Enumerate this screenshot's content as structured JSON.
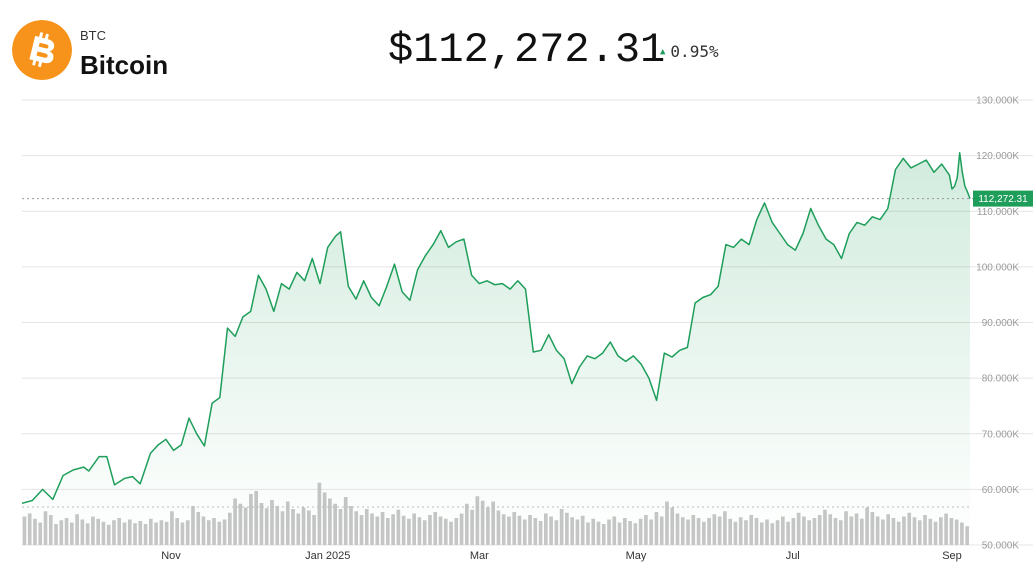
{
  "asset": {
    "ticker": "BTC",
    "name": "Bitcoin",
    "icon": "bitcoin-logo-icon",
    "price": "$112,272.31",
    "change": "0.95%",
    "change_direction": "up",
    "colors": {
      "logo": "#f7931a",
      "line": "#1e9e5a",
      "up": "#1e9e5a",
      "volume": "#c6c6c6"
    }
  },
  "chart_data": {
    "type": "area",
    "title": "",
    "xlabel": "",
    "ylabel": "",
    "ylim": [
      50000,
      130000
    ],
    "y_ticks": [
      {
        "value": 130000,
        "label": "130.000K"
      },
      {
        "value": 120000,
        "label": "120.000K"
      },
      {
        "value": 110000,
        "label": "110.000K"
      },
      {
        "value": 100000,
        "label": "100.000K"
      },
      {
        "value": 90000,
        "label": "90.000K"
      },
      {
        "value": 80000,
        "label": "80.000K"
      },
      {
        "value": 70000,
        "label": "70.000K"
      },
      {
        "value": 60000,
        "label": "60.000K"
      },
      {
        "value": 50000,
        "label": "50.000K"
      }
    ],
    "x_range": [
      "2024-09-04",
      "2025-09-08"
    ],
    "x_ticks": [
      {
        "date": "2024-11-01",
        "label": "Nov"
      },
      {
        "date": "2025-01-01",
        "label": "Jan 2025"
      },
      {
        "date": "2025-03-01",
        "label": "Mar"
      },
      {
        "date": "2025-05-01",
        "label": "May"
      },
      {
        "date": "2025-07-01",
        "label": "Jul"
      },
      {
        "date": "2025-09-01",
        "label": "Sep"
      }
    ],
    "last_price": 112272.31,
    "last_price_label": "112,272.31",
    "grid": true,
    "series": [
      {
        "values": [
          [
            "2024-09-04",
            57500
          ],
          [
            "2024-09-08",
            58000
          ],
          [
            "2024-09-12",
            60000
          ],
          [
            "2024-09-16",
            58200
          ],
          [
            "2024-09-20",
            62500
          ],
          [
            "2024-09-24",
            63500
          ],
          [
            "2024-09-28",
            64000
          ],
          [
            "2024-09-30",
            63300
          ],
          [
            "2024-10-04",
            65900
          ],
          [
            "2024-10-07",
            65900
          ],
          [
            "2024-10-10",
            60800
          ],
          [
            "2024-10-14",
            62000
          ],
          [
            "2024-10-17",
            62300
          ],
          [
            "2024-10-20",
            61000
          ],
          [
            "2024-10-24",
            66500
          ],
          [
            "2024-10-27",
            68000
          ],
          [
            "2024-10-30",
            69000
          ],
          [
            "2024-11-02",
            67000
          ],
          [
            "2024-11-05",
            68000
          ],
          [
            "2024-11-08",
            72800
          ],
          [
            "2024-11-11",
            70000
          ],
          [
            "2024-11-14",
            67800
          ],
          [
            "2024-11-17",
            75500
          ],
          [
            "2024-11-20",
            76500
          ],
          [
            "2024-11-23",
            89000
          ],
          [
            "2024-11-26",
            87500
          ],
          [
            "2024-11-29",
            91000
          ],
          [
            "2024-12-02",
            92000
          ],
          [
            "2024-12-05",
            98500
          ],
          [
            "2024-12-08",
            96000
          ],
          [
            "2024-12-11",
            92000
          ],
          [
            "2024-12-14",
            97000
          ],
          [
            "2024-12-17",
            96000
          ],
          [
            "2024-12-20",
            99000
          ],
          [
            "2024-12-23",
            97500
          ],
          [
            "2024-12-26",
            101500
          ],
          [
            "2024-12-29",
            97000
          ],
          [
            "2025-01-01",
            103500
          ],
          [
            "2025-01-04",
            105500
          ],
          [
            "2025-01-06",
            106300
          ],
          [
            "2025-01-09",
            96500
          ],
          [
            "2025-01-12",
            94200
          ],
          [
            "2025-01-15",
            97500
          ],
          [
            "2025-01-18",
            94500
          ],
          [
            "2025-01-21",
            93000
          ],
          [
            "2025-01-24",
            96500
          ],
          [
            "2025-01-27",
            100500
          ],
          [
            "2025-01-30",
            95500
          ],
          [
            "2025-02-02",
            94000
          ],
          [
            "2025-02-05",
            99500
          ],
          [
            "2025-02-08",
            102000
          ],
          [
            "2025-02-11",
            104000
          ],
          [
            "2025-02-14",
            106500
          ],
          [
            "2025-02-17",
            103500
          ],
          [
            "2025-02-20",
            104500
          ],
          [
            "2025-02-23",
            105000
          ],
          [
            "2025-02-26",
            98500
          ],
          [
            "2025-03-01",
            97000
          ],
          [
            "2025-03-04",
            97500
          ],
          [
            "2025-03-07",
            96800
          ],
          [
            "2025-03-10",
            97000
          ],
          [
            "2025-03-13",
            96000
          ],
          [
            "2025-03-16",
            97500
          ],
          [
            "2025-03-19",
            96000
          ],
          [
            "2025-03-22",
            84700
          ],
          [
            "2025-03-25",
            85000
          ],
          [
            "2025-03-28",
            87800
          ],
          [
            "2025-03-31",
            85000
          ],
          [
            "2025-04-03",
            83500
          ],
          [
            "2025-04-06",
            79000
          ],
          [
            "2025-04-09",
            82000
          ],
          [
            "2025-04-12",
            84000
          ],
          [
            "2025-04-15",
            83500
          ],
          [
            "2025-04-18",
            84500
          ],
          [
            "2025-04-21",
            86500
          ],
          [
            "2025-04-24",
            84000
          ],
          [
            "2025-04-27",
            83000
          ],
          [
            "2025-04-30",
            84000
          ],
          [
            "2025-05-03",
            82500
          ],
          [
            "2025-05-06",
            80000
          ],
          [
            "2025-05-09",
            76000
          ],
          [
            "2025-05-12",
            84500
          ],
          [
            "2025-05-15",
            83800
          ],
          [
            "2025-05-18",
            85000
          ],
          [
            "2025-05-21",
            85500
          ],
          [
            "2025-05-24",
            93500
          ],
          [
            "2025-05-27",
            94500
          ],
          [
            "2025-05-30",
            95000
          ],
          [
            "2025-06-02",
            96500
          ],
          [
            "2025-06-05",
            104000
          ],
          [
            "2025-06-08",
            103500
          ],
          [
            "2025-06-11",
            105000
          ],
          [
            "2025-06-14",
            104000
          ],
          [
            "2025-06-17",
            108500
          ],
          [
            "2025-06-20",
            111500
          ],
          [
            "2025-06-23",
            108000
          ],
          [
            "2025-06-26",
            106000
          ],
          [
            "2025-06-29",
            104000
          ],
          [
            "2025-07-02",
            103000
          ],
          [
            "2025-07-05",
            106000
          ],
          [
            "2025-07-08",
            110500
          ],
          [
            "2025-07-11",
            107500
          ],
          [
            "2025-07-14",
            105000
          ],
          [
            "2025-07-17",
            104000
          ],
          [
            "2025-07-20",
            101500
          ],
          [
            "2025-07-23",
            106000
          ],
          [
            "2025-07-26",
            108000
          ],
          [
            "2025-07-29",
            107500
          ],
          [
            "2025-08-01",
            109000
          ],
          [
            "2025-08-04",
            108500
          ],
          [
            "2025-08-07",
            110500
          ],
          [
            "2025-08-10",
            117500
          ],
          [
            "2025-08-13",
            119500
          ],
          [
            "2025-08-16",
            117800
          ],
          [
            "2025-08-19",
            118500
          ],
          [
            "2025-08-22",
            119200
          ],
          [
            "2025-08-25",
            117000
          ],
          [
            "2025-08-28",
            118500
          ],
          [
            "2025-08-31",
            116500
          ],
          [
            "2025-09-01",
            114000
          ],
          [
            "2025-09-02",
            114500
          ],
          [
            "2025-09-03",
            116000
          ],
          [
            "2025-09-04",
            120500
          ],
          [
            "2025-09-05",
            117000
          ],
          [
            "2025-09-06",
            114500
          ],
          [
            "2025-09-07",
            113500
          ],
          [
            "2025-09-08",
            112272.31
          ]
        ]
      }
    ],
    "volume": {
      "name": "Volume",
      "count": 180,
      "relative": [
        0.38,
        0.42,
        0.35,
        0.3,
        0.45,
        0.4,
        0.28,
        0.33,
        0.36,
        0.3,
        0.41,
        0.34,
        0.29,
        0.38,
        0.35,
        0.31,
        0.27,
        0.33,
        0.36,
        0.3,
        0.34,
        0.29,
        0.32,
        0.28,
        0.35,
        0.3,
        0.33,
        0.31,
        0.45,
        0.36,
        0.3,
        0.33,
        0.52,
        0.44,
        0.38,
        0.33,
        0.36,
        0.31,
        0.34,
        0.43,
        0.62,
        0.55,
        0.5,
        0.68,
        0.72,
        0.56,
        0.49,
        0.6,
        0.52,
        0.45,
        0.58,
        0.48,
        0.42,
        0.5,
        0.46,
        0.4,
        0.83,
        0.7,
        0.62,
        0.55,
        0.48,
        0.64,
        0.52,
        0.45,
        0.4,
        0.48,
        0.42,
        0.38,
        0.44,
        0.36,
        0.41,
        0.47,
        0.39,
        0.35,
        0.42,
        0.37,
        0.33,
        0.4,
        0.44,
        0.38,
        0.35,
        0.31,
        0.36,
        0.42,
        0.55,
        0.47,
        0.65,
        0.59,
        0.5,
        0.58,
        0.46,
        0.41,
        0.38,
        0.44,
        0.39,
        0.34,
        0.4,
        0.36,
        0.32,
        0.42,
        0.38,
        0.33,
        0.48,
        0.43,
        0.37,
        0.34,
        0.39,
        0.3,
        0.35,
        0.31,
        0.28,
        0.34,
        0.38,
        0.3,
        0.36,
        0.32,
        0.29,
        0.35,
        0.4,
        0.34,
        0.44,
        0.38,
        0.58,
        0.5,
        0.42,
        0.37,
        0.34,
        0.4,
        0.36,
        0.31,
        0.36,
        0.41,
        0.38,
        0.45,
        0.35,
        0.31,
        0.37,
        0.33,
        0.4,
        0.36,
        0.3,
        0.34,
        0.29,
        0.33,
        0.38,
        0.31,
        0.36,
        0.43,
        0.38,
        0.33,
        0.36,
        0.4,
        0.47,
        0.41,
        0.36,
        0.33,
        0.45,
        0.38,
        0.42,
        0.35,
        0.5,
        0.44,
        0.38,
        0.34,
        0.41,
        0.36,
        0.31,
        0.38,
        0.43,
        0.37,
        0.33,
        0.4,
        0.35,
        0.31,
        0.37,
        0.42,
        0.36,
        0.34,
        0.3,
        0.25
      ]
    }
  }
}
